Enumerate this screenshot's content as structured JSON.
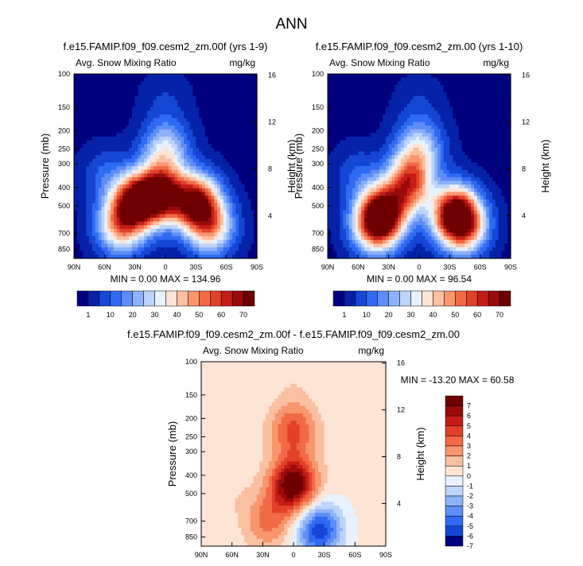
{
  "figure": {
    "title": "ANN",
    "variable_label": "Avg. Snow Mixing Ratio",
    "units": "mg/kg",
    "y_label": "Pressure (mb)",
    "y2_label": "Height (km)",
    "x_ticks": [
      "90N",
      "60N",
      "30N",
      "0",
      "30S",
      "60S",
      "90S"
    ],
    "pressure_ticks": [
      "100",
      "150",
      "200",
      "250",
      "300",
      "400",
      "500",
      "700",
      "850"
    ],
    "height_ticks": [
      "16",
      "12",
      "8",
      "4"
    ]
  },
  "panels": [
    {
      "title": "f.e15.FAMIP.f09_f09.cesm2_zm.00f (yrs 1-9)",
      "stats": "MIN =  0.00  MAX = 134.96"
    },
    {
      "title": "f.e15.FAMIP.f09_f09.cesm2_zm.00 (yrs 1-10)",
      "stats": "MIN =  0.00  MAX = 96.54"
    },
    {
      "title": "f.e15.FAMIP.f09_f09.cesm2_zm.00f - f.e15.FAMIP.f09_f09.cesm2_zm.00",
      "stats": "MIN = -13.20  MAX = 60.58"
    }
  ],
  "chart_data": [
    {
      "type": "heatmap",
      "title": "f.e15.FAMIP.f09_f09.cesm2_zm.00f (yrs 1-9)",
      "subtitle": "Avg. Snow Mixing Ratio",
      "units": "mg/kg",
      "xlabel": "",
      "ylabel": "Pressure (mb)",
      "y2label": "Height (km)",
      "x_range": [
        90,
        -90
      ],
      "y_range": [
        100,
        1000
      ],
      "y_scale": "log",
      "min": 0.0,
      "max": 134.96,
      "colorbar_labels": [
        "1",
        "10",
        "20",
        "30",
        "40",
        "50",
        "60",
        "70"
      ],
      "field": [
        {
          "lat": 5,
          "p": 430,
          "value": 75
        },
        {
          "lat": 30,
          "p": 480,
          "value": 70
        },
        {
          "lat": -30,
          "p": 480,
          "value": 70
        },
        {
          "lat": 45,
          "p": 650,
          "value": 40
        },
        {
          "lat": -45,
          "p": 650,
          "value": 40
        },
        {
          "lat": 0,
          "p": 250,
          "value": 30
        },
        {
          "lat": 0,
          "p": 140,
          "value": 5
        },
        {
          "lat": 60,
          "p": 350,
          "value": 10
        },
        {
          "lat": 0,
          "p": 850,
          "value": 1
        }
      ]
    },
    {
      "type": "heatmap",
      "title": "f.e15.FAMIP.f09_f09.cesm2_zm.00 (yrs 1-10)",
      "subtitle": "Avg. Snow Mixing Ratio",
      "units": "mg/kg",
      "xlabel": "",
      "ylabel": "Pressure (mb)",
      "y2label": "Height (km)",
      "x_range": [
        90,
        -90
      ],
      "y_range": [
        100,
        1000
      ],
      "y_scale": "log",
      "min": 0.0,
      "max": 96.54,
      "colorbar_labels": [
        "1",
        "10",
        "20",
        "30",
        "40",
        "50",
        "60",
        "70"
      ],
      "field": [
        {
          "lat": 35,
          "p": 550,
          "value": 72
        },
        {
          "lat": -35,
          "p": 550,
          "value": 72
        },
        {
          "lat": 10,
          "p": 380,
          "value": 55
        },
        {
          "lat": 45,
          "p": 650,
          "value": 40
        },
        {
          "lat": -45,
          "p": 650,
          "value": 40
        },
        {
          "lat": 0,
          "p": 250,
          "value": 30
        },
        {
          "lat": 0,
          "p": 150,
          "value": 5
        },
        {
          "lat": 60,
          "p": 350,
          "value": 10
        },
        {
          "lat": 0,
          "p": 850,
          "value": 1
        }
      ]
    },
    {
      "type": "heatmap",
      "title": "f.e15.FAMIP.f09_f09.cesm2_zm.00f - f.e15.FAMIP.f09_f09.cesm2_zm.00",
      "subtitle": "Avg. Snow Mixing Ratio",
      "units": "mg/kg",
      "xlabel": "",
      "ylabel": "Pressure (mb)",
      "y2label": "Height (km)",
      "x_range": [
        90,
        -90
      ],
      "y_range": [
        100,
        1000
      ],
      "y_scale": "log",
      "min": -13.2,
      "max": 60.58,
      "colorbar_labels": [
        "7",
        "6",
        "5",
        "4",
        "3",
        "2",
        "1",
        "0",
        "-1",
        "-2",
        "-3",
        "-4",
        "-5",
        "-6",
        "-7"
      ],
      "field": [
        {
          "lat": 0,
          "p": 450,
          "value": 8
        },
        {
          "lat": 0,
          "p": 230,
          "value": 4
        },
        {
          "lat": 25,
          "p": 700,
          "value": 3
        },
        {
          "lat": -25,
          "p": 780,
          "value": -6
        },
        {
          "lat": 60,
          "p": 500,
          "value": 0.5
        },
        {
          "lat": 0,
          "p": 120,
          "value": 0.5
        }
      ]
    }
  ]
}
